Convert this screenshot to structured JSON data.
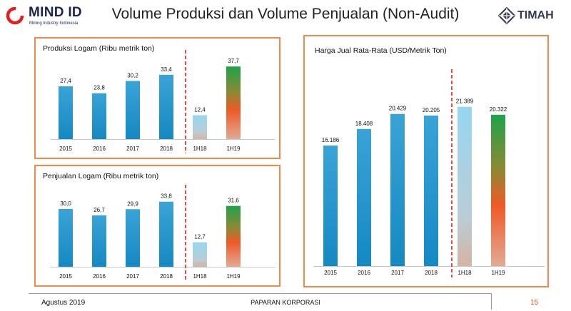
{
  "header": {
    "title": "Volume Produksi dan Volume Penjualan (Non-Audit)",
    "logo_left": {
      "name": "MIND ID",
      "tagline": "Mining Industry Indonesia"
    },
    "logo_right": {
      "name": "TIMAH"
    }
  },
  "footer": {
    "date": "Agustus 2019",
    "center": "PAPARAN KORPORASI",
    "page": "15"
  },
  "colors": {
    "accent": "#ee8a4c",
    "actual_bar": "#1f90c8",
    "h18_bar": "#8ed1ef",
    "divider": "#e0241b"
  },
  "chart_data": [
    {
      "type": "bar",
      "title": "Produksi Logam (Ribu metrik ton)",
      "categories": [
        "2015",
        "2016",
        "2017",
        "2018",
        "1H18",
        "1H19"
      ],
      "values": [
        27.4,
        23.8,
        30.2,
        33.4,
        12.4,
        37.7
      ],
      "labels": [
        "27,4",
        "23,8",
        "30,2",
        "33,4",
        "12,4",
        "37,7"
      ],
      "ylim": [
        0,
        40
      ],
      "grid": false,
      "divider_after_index": 3
    },
    {
      "type": "bar",
      "title": "Penjualan Logam (Ribu metrik ton)",
      "categories": [
        "2015",
        "2016",
        "2017",
        "2018",
        "1H18",
        "1H19"
      ],
      "values": [
        30.0,
        26.7,
        29.9,
        33.8,
        12.7,
        31.6
      ],
      "labels": [
        "30,0",
        "26,7",
        "29,9",
        "33,8",
        "12,7",
        "31,6"
      ],
      "ylim": [
        0,
        40
      ],
      "grid": false,
      "divider_after_index": 3
    },
    {
      "type": "bar",
      "title": "Harga Jual Rata-Rata (USD/Metrik Ton)",
      "categories": [
        "2015",
        "2016",
        "2017",
        "2018",
        "1H18",
        "1H19"
      ],
      "values": [
        16186,
        18408,
        20429,
        20205,
        21389,
        20322
      ],
      "labels": [
        "16.186",
        "18.408",
        "20.429",
        "20.205",
        "21.389",
        "20.322"
      ],
      "ylim": [
        0,
        22800
      ],
      "grid": false,
      "divider_after_index": 3
    }
  ]
}
